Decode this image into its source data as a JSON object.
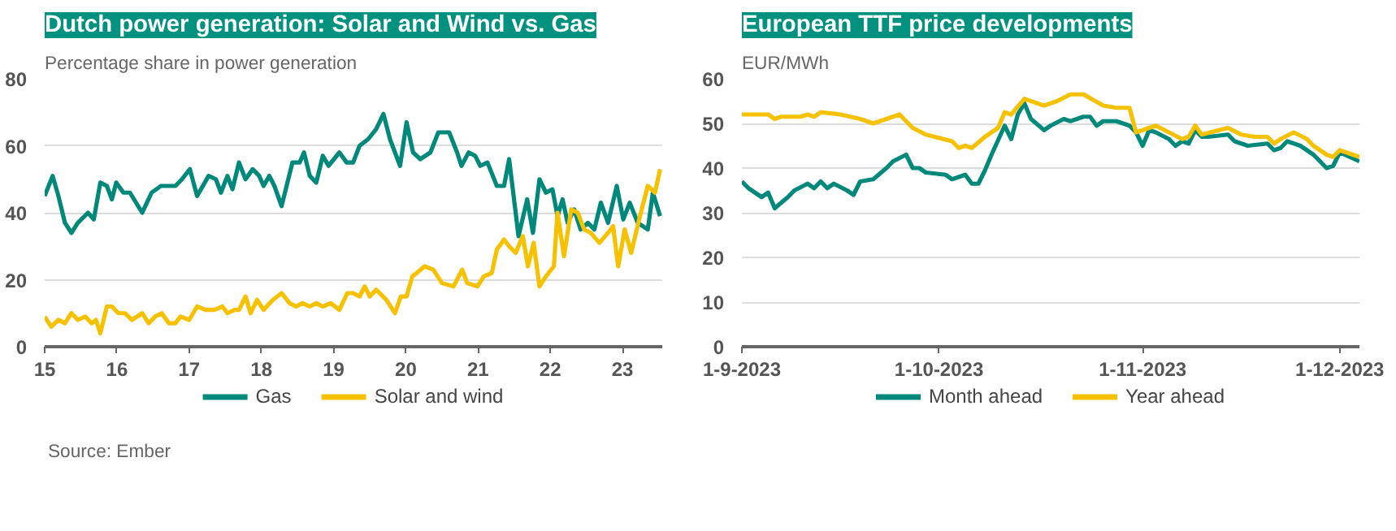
{
  "chart_data": [
    {
      "type": "line",
      "title": "Dutch power generation: Solar and Wind vs. Gas",
      "subtitle": "Percentage share in power generation",
      "xlim": [
        2015,
        2023.55
      ],
      "ylim": [
        0,
        80
      ],
      "xticks": [
        {
          "value": 2015,
          "label": "15"
        },
        {
          "value": 2016,
          "label": "16"
        },
        {
          "value": 2017,
          "label": "17"
        },
        {
          "value": 2018,
          "label": "18"
        },
        {
          "value": 2019,
          "label": "19"
        },
        {
          "value": 2020,
          "label": "20"
        },
        {
          "value": 2021,
          "label": "21"
        },
        {
          "value": 2022,
          "label": "22"
        },
        {
          "value": 2023,
          "label": "23"
        }
      ],
      "yticks": [
        0,
        20,
        40,
        60,
        80
      ],
      "grid": "y",
      "legend": "bottom",
      "annotations": [
        "Source: Ember"
      ],
      "series": [
        {
          "name": "Gas",
          "color": "#00897b",
          "x": [
            2015.0,
            2015.11,
            2015.19,
            2015.28,
            2015.37,
            2015.46,
            2015.6,
            2015.68,
            2015.77,
            2015.86,
            2015.93,
            2015.99,
            2016.09,
            2016.18,
            2016.35,
            2016.48,
            2016.61,
            2016.81,
            2016.9,
            2017.01,
            2017.11,
            2017.27,
            2017.37,
            2017.44,
            2017.53,
            2017.6,
            2017.69,
            2017.78,
            2017.88,
            2017.97,
            2018.03,
            2018.11,
            2018.18,
            2018.28,
            2018.43,
            2018.53,
            2018.59,
            2018.67,
            2018.76,
            2018.85,
            2018.93,
            2019.08,
            2019.18,
            2019.27,
            2019.36,
            2019.48,
            2019.59,
            2019.69,
            2019.78,
            2019.92,
            2020.01,
            2020.1,
            2020.2,
            2020.34,
            2020.45,
            2020.6,
            2020.71,
            2020.77,
            2020.87,
            2020.96,
            2021.03,
            2021.13,
            2021.26,
            2021.36,
            2021.43,
            2021.56,
            2021.68,
            2021.76,
            2021.85,
            2021.94,
            2022.03,
            2022.1,
            2022.17,
            2022.24,
            2022.33,
            2022.42,
            2022.52,
            2022.61,
            2022.7,
            2022.8,
            2022.92,
            2023.01,
            2023.1,
            2023.21,
            2023.35,
            2023.42,
            2023.52
          ],
          "values": [
            45,
            51,
            45,
            37,
            34,
            37,
            40,
            38,
            49,
            48,
            44,
            49,
            46,
            46,
            40,
            46,
            48,
            48,
            50,
            53,
            45,
            51,
            50,
            46,
            51,
            47,
            55,
            50,
            53,
            51,
            48,
            51,
            48,
            42,
            55,
            55,
            58,
            51,
            49,
            57,
            54,
            58,
            55,
            55,
            60,
            62,
            65,
            69.5,
            62,
            54,
            67,
            58,
            56,
            58,
            64,
            64,
            58,
            54,
            58,
            57,
            54,
            55,
            48,
            48,
            56,
            33,
            44,
            34,
            50,
            46,
            47,
            39,
            44,
            37,
            41,
            35,
            37,
            35,
            43,
            37,
            48,
            38,
            43,
            37,
            35,
            46,
            39
          ]
        },
        {
          "name": "Solar and wind",
          "color": "#f5c100",
          "x": [
            2015.0,
            2015.09,
            2015.19,
            2015.28,
            2015.37,
            2015.46,
            2015.56,
            2015.65,
            2015.71,
            2015.77,
            2015.86,
            2015.93,
            2016.02,
            2016.11,
            2016.21,
            2016.35,
            2016.44,
            2016.53,
            2016.62,
            2016.72,
            2016.81,
            2016.88,
            2017.0,
            2017.11,
            2017.23,
            2017.35,
            2017.46,
            2017.53,
            2017.63,
            2017.69,
            2017.78,
            2017.85,
            2017.94,
            2018.03,
            2018.16,
            2018.28,
            2018.39,
            2018.48,
            2018.57,
            2018.67,
            2018.76,
            2018.85,
            2018.96,
            2019.08,
            2019.19,
            2019.27,
            2019.36,
            2019.43,
            2019.5,
            2019.59,
            2019.73,
            2019.85,
            2019.93,
            2020.01,
            2020.09,
            2020.15,
            2020.26,
            2020.38,
            2020.5,
            2020.66,
            2020.78,
            2020.85,
            2020.99,
            2021.08,
            2021.19,
            2021.26,
            2021.36,
            2021.43,
            2021.52,
            2021.62,
            2021.69,
            2021.77,
            2021.85,
            2021.94,
            2022.05,
            2022.1,
            2022.19,
            2022.29,
            2022.38,
            2022.47,
            2022.56,
            2022.68,
            2022.8,
            2022.87,
            2022.94,
            2023.03,
            2023.12,
            2023.23,
            2023.35,
            2023.45,
            2023.52
          ],
          "values": [
            9,
            6,
            8,
            7,
            10,
            8,
            9,
            7,
            8,
            4,
            12,
            12,
            10,
            10,
            8,
            10,
            7,
            9,
            10,
            7,
            7,
            9,
            8,
            12,
            11,
            11,
            12,
            10,
            11,
            11,
            15,
            10,
            14,
            11,
            14,
            16,
            13,
            12,
            13,
            12,
            13,
            12,
            13,
            11,
            16,
            16,
            15,
            18,
            15,
            17,
            14,
            10,
            15,
            15,
            21,
            22,
            24,
            23,
            19,
            18,
            23,
            19,
            18,
            21,
            22,
            29,
            32,
            30,
            28,
            33,
            24,
            31,
            18,
            21,
            24,
            40,
            27,
            41,
            40,
            35,
            34,
            31,
            34,
            36,
            24,
            35,
            28,
            38,
            48,
            46,
            53
          ]
        }
      ]
    },
    {
      "type": "line",
      "title": "European TTF price developments",
      "subtitle": "EUR/MWh",
      "xlim": [
        "2023-09-01",
        "2023-12-04"
      ],
      "ylim": [
        0,
        60
      ],
      "xticks": [
        {
          "value": "2023-09-01",
          "label": "1-9-2023"
        },
        {
          "value": "2023-10-01",
          "label": "1-10-2023"
        },
        {
          "value": "2023-11-01",
          "label": "1-11-2023"
        },
        {
          "value": "2023-12-01",
          "label": "1-12-2023"
        }
      ],
      "yticks": [
        0,
        10,
        20,
        30,
        40,
        50,
        60
      ],
      "grid": "y",
      "legend": "bottom",
      "series": [
        {
          "name": "Month ahead",
          "color": "#00897b",
          "x": [
            "2023-09-01",
            "2023-09-02",
            "2023-09-04",
            "2023-09-05",
            "2023-09-06",
            "2023-09-08",
            "2023-09-09",
            "2023-09-11",
            "2023-09-12",
            "2023-09-13",
            "2023-09-14",
            "2023-09-15",
            "2023-09-17",
            "2023-09-18",
            "2023-09-19",
            "2023-09-21",
            "2023-09-23",
            "2023-09-24",
            "2023-09-26",
            "2023-09-27",
            "2023-09-28",
            "2023-09-29",
            "2023-10-02",
            "2023-10-03",
            "2023-10-05",
            "2023-10-06",
            "2023-10-07",
            "2023-10-08",
            "2023-10-09",
            "2023-10-11",
            "2023-10-12",
            "2023-10-13",
            "2023-10-14",
            "2023-10-15",
            "2023-10-17",
            "2023-10-18",
            "2023-10-20",
            "2023-10-21",
            "2023-10-23",
            "2023-10-24",
            "2023-10-25",
            "2023-10-26",
            "2023-10-28",
            "2023-10-30",
            "2023-10-31",
            "2023-11-01",
            "2023-11-02",
            "2023-11-03",
            "2023-11-05",
            "2023-11-06",
            "2023-11-07",
            "2023-11-08",
            "2023-11-09",
            "2023-11-10",
            "2023-11-11",
            "2023-11-14",
            "2023-11-15",
            "2023-11-17",
            "2023-11-20",
            "2023-11-21",
            "2023-11-22",
            "2023-11-23",
            "2023-11-25",
            "2023-11-27",
            "2023-11-28",
            "2023-11-29",
            "2023-11-30",
            "2023-12-01",
            "2023-12-04"
          ],
          "values": [
            37,
            35.5,
            33.5,
            34.5,
            31,
            33.5,
            35,
            36.5,
            35.5,
            37,
            35.5,
            36.5,
            35,
            34,
            37,
            37.5,
            40,
            41.5,
            43,
            40,
            40,
            39,
            38.5,
            37.5,
            38.5,
            36.5,
            36.5,
            39.5,
            43,
            49.5,
            46.5,
            52,
            54.5,
            51,
            48.5,
            49.5,
            51,
            50.5,
            51.5,
            51.5,
            49.5,
            50.5,
            50.5,
            49.5,
            48,
            45,
            48.5,
            48,
            46.5,
            45,
            46,
            45.5,
            48.5,
            47,
            47,
            47.5,
            46,
            45,
            45.5,
            44,
            44.5,
            46,
            45,
            43,
            41.5,
            40,
            40.5,
            43.5,
            41.5
          ]
        },
        {
          "name": "Year ahead",
          "color": "#f5c100",
          "x": [
            "2023-09-01",
            "2023-09-05",
            "2023-09-06",
            "2023-09-07",
            "2023-09-10",
            "2023-09-11",
            "2023-09-12",
            "2023-09-13",
            "2023-09-16",
            "2023-09-19",
            "2023-09-21",
            "2023-09-23",
            "2023-09-25",
            "2023-09-27",
            "2023-09-29",
            "2023-10-03",
            "2023-10-04",
            "2023-10-05",
            "2023-10-06",
            "2023-10-08",
            "2023-10-10",
            "2023-10-11",
            "2023-10-12",
            "2023-10-14",
            "2023-10-15",
            "2023-10-17",
            "2023-10-19",
            "2023-10-21",
            "2023-10-23",
            "2023-10-26",
            "2023-10-28",
            "2023-10-30",
            "2023-10-31",
            "2023-11-02",
            "2023-11-03",
            "2023-11-05",
            "2023-11-07",
            "2023-11-08",
            "2023-11-09",
            "2023-11-10",
            "2023-11-14",
            "2023-11-16",
            "2023-11-18",
            "2023-11-20",
            "2023-11-21",
            "2023-11-22",
            "2023-11-24",
            "2023-11-26",
            "2023-11-27",
            "2023-11-29",
            "2023-11-30",
            "2023-12-01",
            "2023-12-04"
          ],
          "values": [
            52,
            52,
            51,
            51.5,
            51.5,
            52,
            51.5,
            52.5,
            52,
            51,
            50,
            51,
            52,
            49,
            47.5,
            46,
            44.5,
            45,
            44.5,
            47,
            49,
            52.5,
            52,
            55.5,
            55,
            54,
            55,
            56.5,
            56.5,
            54,
            53.5,
            53.5,
            48,
            49,
            49.5,
            48,
            46.5,
            47,
            49.5,
            47.5,
            49,
            47.5,
            47,
            47,
            45.5,
            46.5,
            48,
            46.5,
            45,
            43,
            42.5,
            44,
            42.5
          ]
        }
      ]
    }
  ]
}
